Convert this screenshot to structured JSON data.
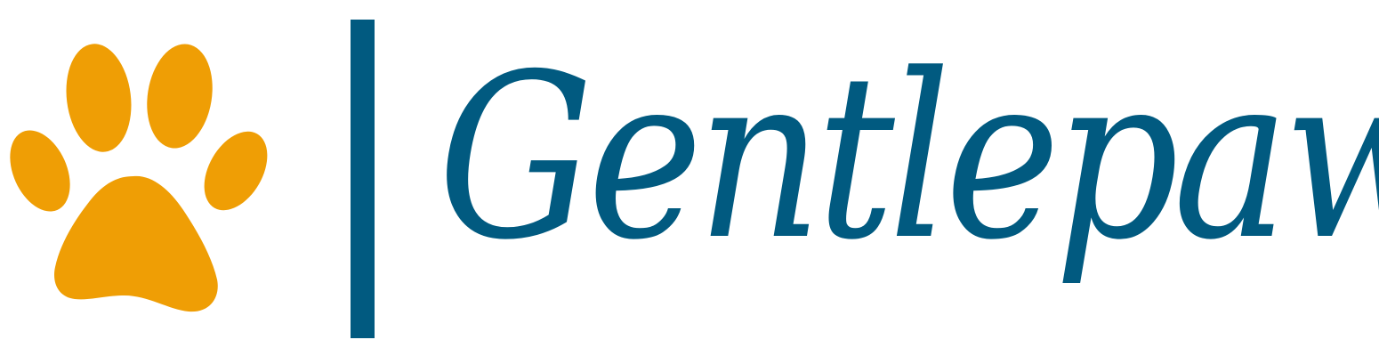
{
  "brand": {
    "name": "Gentlepaw",
    "text_color": "#015a80",
    "divider_color": "#015a80",
    "icon": "paw-print-icon",
    "icon_color": "#ef9e05"
  }
}
